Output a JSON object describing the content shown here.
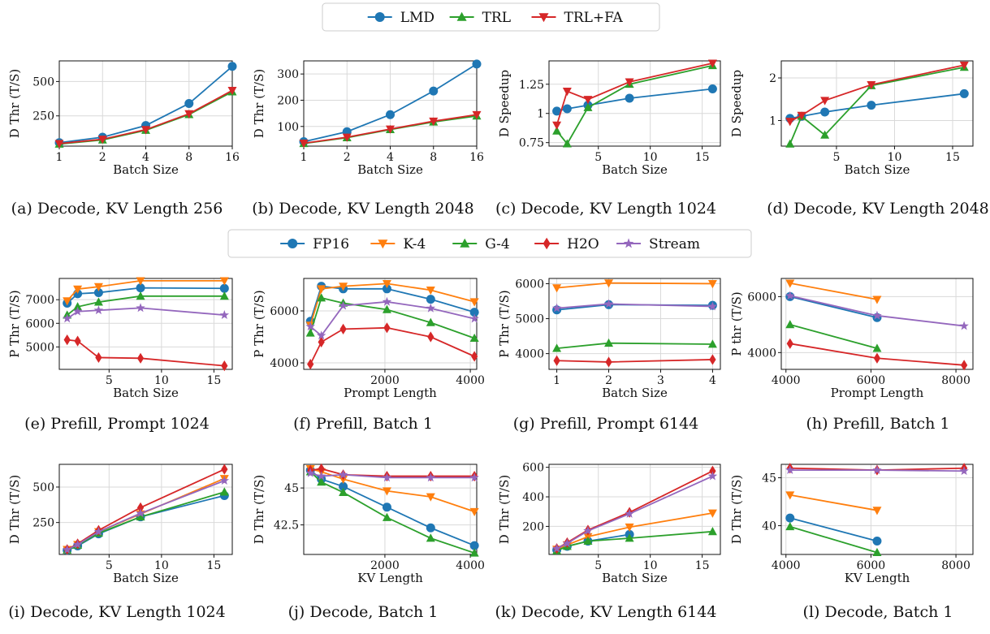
{
  "colors": {
    "LMD": "#1f77b4",
    "TRL": "#2ca02c",
    "TRL+FA": "#d62728",
    "FP16": "#1f77b4",
    "K-4": "#ff7f0e",
    "G-4": "#2ca02c",
    "H2O": "#d62728",
    "Stream": "#9467bd"
  },
  "legends": [
    {
      "entries": [
        {
          "name": "LMD",
          "marker": "circle"
        },
        {
          "name": "TRL",
          "marker": "triangle-up"
        },
        {
          "name": "TRL+FA",
          "marker": "triangle-down"
        }
      ]
    },
    {
      "entries": [
        {
          "name": "FP16",
          "marker": "circle"
        },
        {
          "name": "K-4",
          "marker": "triangle-down"
        },
        {
          "name": "G-4",
          "marker": "triangle-up"
        },
        {
          "name": "H2O",
          "marker": "diamond"
        },
        {
          "name": "Stream",
          "marker": "star"
        }
      ]
    }
  ],
  "chart_data": [
    {
      "id": "a",
      "type": "line",
      "caption": "(a) Decode, KV Length 256",
      "xlabel": "Batch Size",
      "ylabel": "D Thr (T/S)",
      "xscale": "log2",
      "xlim": [
        1,
        16
      ],
      "ylim": [
        30,
        650
      ],
      "xticks": [
        1,
        2,
        4,
        8,
        16
      ],
      "yticks": [
        250,
        500
      ],
      "grid": true,
      "series": [
        {
          "name": "LMD",
          "x": [
            1,
            2,
            4,
            8,
            16
          ],
          "y": [
            55,
            95,
            180,
            340,
            610
          ]
        },
        {
          "name": "TRL",
          "x": [
            1,
            2,
            4,
            8,
            16
          ],
          "y": [
            45,
            75,
            145,
            260,
            425
          ]
        },
        {
          "name": "TRL+FA",
          "x": [
            1,
            2,
            4,
            8,
            16
          ],
          "y": [
            48,
            80,
            150,
            265,
            435
          ]
        }
      ]
    },
    {
      "id": "b",
      "type": "line",
      "caption": "(b) Decode, KV Length 2048",
      "xlabel": "Batch Size",
      "ylabel": "D Thr (T/S)",
      "xscale": "log2",
      "xlim": [
        1,
        16
      ],
      "ylim": [
        25,
        350
      ],
      "xticks": [
        1,
        2,
        4,
        8,
        16
      ],
      "yticks": [
        100,
        200,
        300
      ],
      "grid": true,
      "series": [
        {
          "name": "LMD",
          "x": [
            1,
            2,
            4,
            8,
            16
          ],
          "y": [
            42,
            80,
            145,
            235,
            338
          ]
        },
        {
          "name": "TRL",
          "x": [
            1,
            2,
            4,
            8,
            16
          ],
          "y": [
            35,
            57,
            88,
            117,
            140
          ]
        },
        {
          "name": "TRL+FA",
          "x": [
            1,
            2,
            4,
            8,
            16
          ],
          "y": [
            36,
            59,
            90,
            120,
            145
          ]
        }
      ]
    },
    {
      "id": "c",
      "type": "line",
      "caption": "(c) Decode, KV Length 1024",
      "xlabel": "Batch Size",
      "ylabel": "D Speedup",
      "xscale": "linear",
      "xlim": [
        0.25,
        16.75
      ],
      "ylim": [
        0.72,
        1.45
      ],
      "xticks": [
        5,
        10,
        15
      ],
      "yticks": [
        0.75,
        1.0,
        1.25
      ],
      "grid": true,
      "series": [
        {
          "name": "LMD",
          "x": [
            1,
            2,
            4,
            8,
            16
          ],
          "y": [
            1.02,
            1.04,
            1.07,
            1.13,
            1.21
          ]
        },
        {
          "name": "TRL",
          "x": [
            1,
            2,
            4,
            8,
            16
          ],
          "y": [
            0.85,
            0.74,
            1.05,
            1.25,
            1.41
          ]
        },
        {
          "name": "TRL+FA",
          "x": [
            1,
            2,
            4,
            8,
            16
          ],
          "y": [
            0.9,
            1.19,
            1.12,
            1.27,
            1.43
          ]
        }
      ]
    },
    {
      "id": "d",
      "type": "line",
      "caption": "(d) Decode, KV Length 2048",
      "xlabel": "Batch Size",
      "ylabel": "D Speedup",
      "xscale": "linear",
      "xlim": [
        0.25,
        16.75
      ],
      "ylim": [
        0.4,
        2.4
      ],
      "xticks": [
        5,
        10,
        15
      ],
      "yticks": [
        1,
        2
      ],
      "grid": true,
      "series": [
        {
          "name": "LMD",
          "x": [
            1,
            2,
            4,
            8,
            16
          ],
          "y": [
            1.05,
            1.1,
            1.2,
            1.36,
            1.63
          ]
        },
        {
          "name": "TRL",
          "x": [
            1,
            2,
            4,
            8,
            16
          ],
          "y": [
            0.45,
            1.1,
            0.66,
            1.82,
            2.25
          ]
        },
        {
          "name": "TRL+FA",
          "x": [
            1,
            2,
            4,
            8,
            16
          ],
          "y": [
            0.98,
            1.12,
            1.47,
            1.84,
            2.3
          ]
        }
      ]
    },
    {
      "id": "e",
      "type": "line",
      "caption": "(e) Prefill, Prompt 1024",
      "xlabel": "Batch Size",
      "ylabel": "P Thr (T/S)",
      "xscale": "linear",
      "xlim": [
        0.25,
        16.75
      ],
      "ylim": [
        4050,
        7900
      ],
      "xticks": [
        5,
        10,
        15
      ],
      "yticks": [
        5000,
        6000,
        7000
      ],
      "grid": true,
      "series": [
        {
          "name": "FP16",
          "x": [
            1,
            2,
            4,
            8,
            16
          ],
          "y": [
            6850,
            7250,
            7300,
            7500,
            7480
          ]
        },
        {
          "name": "K-4",
          "x": [
            1,
            2,
            4,
            8,
            16
          ],
          "y": [
            6950,
            7450,
            7550,
            7800,
            7800
          ]
        },
        {
          "name": "G-4",
          "x": [
            1,
            2,
            4,
            8,
            16
          ],
          "y": [
            6350,
            6700,
            6900,
            7150,
            7150
          ]
        },
        {
          "name": "H2O",
          "x": [
            1,
            2,
            4,
            8,
            16
          ],
          "y": [
            5300,
            5250,
            4550,
            4520,
            4200
          ]
        },
        {
          "name": "Stream",
          "x": [
            1,
            2,
            4,
            8,
            16
          ],
          "y": [
            6200,
            6500,
            6550,
            6650,
            6350
          ]
        }
      ]
    },
    {
      "id": "f",
      "type": "line",
      "caption": "(f) Prefill, Batch 1",
      "xlabel": "Prompt Length",
      "ylabel": "P Thr (T/S)",
      "xscale": "linear",
      "xlim": [
        100,
        4150
      ],
      "ylim": [
        3750,
        7250
      ],
      "xticks": [
        2000,
        4000
      ],
      "yticks": [
        4000,
        6000
      ],
      "grid": true,
      "series": [
        {
          "name": "FP16",
          "x": [
            256,
            512,
            1024,
            2048,
            3072,
            4096
          ],
          "y": [
            5600,
            6950,
            6850,
            6850,
            6450,
            5950
          ]
        },
        {
          "name": "K-4",
          "x": [
            256,
            512,
            1024,
            2048,
            3072,
            4096
          ],
          "y": [
            5450,
            6850,
            6950,
            7050,
            6800,
            6350
          ]
        },
        {
          "name": "G-4",
          "x": [
            256,
            512,
            1024,
            2048,
            3072,
            4096
          ],
          "y": [
            5150,
            6500,
            6300,
            6050,
            5550,
            4950
          ]
        },
        {
          "name": "H2O",
          "x": [
            256,
            512,
            1024,
            2048,
            3072,
            4096
          ],
          "y": [
            3950,
            4800,
            5300,
            5350,
            5000,
            4250
          ]
        },
        {
          "name": "Stream",
          "x": [
            256,
            512,
            1024,
            2048,
            3072,
            4096
          ],
          "y": [
            5400,
            5050,
            6200,
            6350,
            6100,
            5700
          ]
        }
      ]
    },
    {
      "id": "g",
      "type": "line",
      "caption": "(g) Prefill, Prompt 6144",
      "xlabel": "Batch Size",
      "ylabel": "P Thr (T/S)",
      "xscale": "linear",
      "xlim": [
        0.85,
        4.15
      ],
      "ylim": [
        3550,
        6150
      ],
      "xticks": [
        1,
        2,
        3,
        4
      ],
      "yticks": [
        4000,
        5000,
        6000
      ],
      "grid": true,
      "series": [
        {
          "name": "FP16",
          "x": [
            1,
            2,
            4
          ],
          "y": [
            5250,
            5400,
            5380
          ]
        },
        {
          "name": "K-4",
          "x": [
            1,
            2,
            4
          ],
          "y": [
            5880,
            6020,
            6000
          ]
        },
        {
          "name": "G-4",
          "x": [
            1,
            2,
            4
          ],
          "y": [
            4150,
            4300,
            4270
          ]
        },
        {
          "name": "H2O",
          "x": [
            1,
            2,
            4
          ],
          "y": [
            3800,
            3760,
            3830
          ]
        },
        {
          "name": "Stream",
          "x": [
            1,
            2,
            4
          ],
          "y": [
            5300,
            5420,
            5350
          ]
        }
      ]
    },
    {
      "id": "h",
      "type": "line",
      "caption": "(h) Prefill, Batch 1",
      "xlabel": "Prompt Length",
      "ylabel": "P thr (T/S)",
      "xscale": "linear",
      "xlim": [
        3890,
        8400
      ],
      "ylim": [
        3400,
        6650
      ],
      "xticks": [
        4000,
        6000,
        8000
      ],
      "yticks": [
        4000,
        6000
      ],
      "grid": true,
      "series": [
        {
          "name": "FP16",
          "x": [
            4096,
            6144
          ],
          "y": [
            6000,
            5250
          ]
        },
        {
          "name": "K-4",
          "x": [
            4096,
            6144
          ],
          "y": [
            6480,
            5900
          ]
        },
        {
          "name": "G-4",
          "x": [
            4096,
            6144
          ],
          "y": [
            5000,
            4150
          ]
        },
        {
          "name": "H2O",
          "x": [
            4096,
            6144,
            8192
          ],
          "y": [
            4320,
            3800,
            3550
          ]
        },
        {
          "name": "Stream",
          "x": [
            4096,
            6144,
            8192
          ],
          "y": [
            6030,
            5320,
            4950
          ]
        }
      ]
    },
    {
      "id": "i",
      "type": "line",
      "caption": "(i) Decode, KV Length 1024",
      "xlabel": "Batch Size",
      "ylabel": "D Thr (T/S)",
      "xscale": "linear",
      "xlim": [
        0.25,
        16.75
      ],
      "ylim": [
        25,
        660
      ],
      "xticks": [
        5,
        10,
        15
      ],
      "yticks": [
        250,
        500
      ],
      "grid": true,
      "series": [
        {
          "name": "FP16",
          "x": [
            1,
            2,
            4,
            8,
            16
          ],
          "y": [
            55,
            85,
            170,
            290,
            440
          ]
        },
        {
          "name": "K-4",
          "x": [
            1,
            2,
            4,
            8,
            16
          ],
          "y": [
            60,
            95,
            185,
            310,
            560
          ]
        },
        {
          "name": "G-4",
          "x": [
            1,
            2,
            4,
            8,
            16
          ],
          "y": [
            55,
            90,
            175,
            290,
            465
          ]
        },
        {
          "name": "H2O",
          "x": [
            1,
            2,
            4,
            8,
            16
          ],
          "y": [
            60,
            100,
            195,
            355,
            625
          ]
        },
        {
          "name": "Stream",
          "x": [
            1,
            2,
            4,
            8,
            16
          ],
          "y": [
            58,
            95,
            185,
            315,
            545
          ]
        }
      ]
    },
    {
      "id": "j",
      "type": "line",
      "caption": "(j) Decode, Batch 1",
      "xlabel": "KV Length",
      "ylabel": "D Thr (T/S)",
      "xscale": "linear",
      "xlim": [
        100,
        4150
      ],
      "ylim": [
        40.5,
        46.6
      ],
      "xticks": [
        2000,
        4000
      ],
      "yticks": [
        42.5,
        45.0
      ],
      "grid": true,
      "series": [
        {
          "name": "FP16",
          "x": [
            256,
            512,
            1024,
            2048,
            3072,
            4096
          ],
          "y": [
            46.2,
            45.6,
            45.1,
            43.7,
            42.3,
            41.1
          ]
        },
        {
          "name": "K-4",
          "x": [
            256,
            512,
            1024,
            2048,
            3072,
            4096
          ],
          "y": [
            46.3,
            46.1,
            45.6,
            44.8,
            44.4,
            43.4
          ]
        },
        {
          "name": "G-4",
          "x": [
            256,
            512,
            1024,
            2048,
            3072,
            4096
          ],
          "y": [
            46.1,
            45.4,
            44.7,
            43.0,
            41.6,
            40.6
          ]
        },
        {
          "name": "H2O",
          "x": [
            256,
            512,
            1024,
            2048,
            3072,
            4096
          ],
          "y": [
            46.2,
            46.3,
            45.9,
            45.8,
            45.8,
            45.8
          ]
        },
        {
          "name": "Stream",
          "x": [
            256,
            512,
            1024,
            2048,
            3072,
            4096
          ],
          "y": [
            46.0,
            45.8,
            45.9,
            45.7,
            45.7,
            45.7
          ]
        }
      ]
    },
    {
      "id": "k",
      "type": "line",
      "caption": "(k) Decode, KV Length 6144",
      "xlabel": "Batch Size",
      "ylabel": "D Thr (T/S)",
      "xscale": "linear",
      "xlim": [
        0.25,
        16.75
      ],
      "ylim": [
        10,
        620
      ],
      "xticks": [
        5,
        10,
        15
      ],
      "yticks": [
        200,
        400,
        600
      ],
      "grid": true,
      "series": [
        {
          "name": "FP16",
          "x": [
            1,
            2,
            4,
            8
          ],
          "y": [
            40,
            65,
            100,
            145
          ]
        },
        {
          "name": "K-4",
          "x": [
            1,
            2,
            4,
            8,
            16
          ],
          "y": [
            45,
            75,
            130,
            195,
            290
          ]
        },
        {
          "name": "G-4",
          "x": [
            1,
            2,
            4,
            8,
            16
          ],
          "y": [
            35,
            65,
            100,
            120,
            165
          ]
        },
        {
          "name": "H2O",
          "x": [
            1,
            2,
            4,
            8,
            16
          ],
          "y": [
            50,
            90,
            175,
            295,
            575
          ]
        },
        {
          "name": "Stream",
          "x": [
            1,
            2,
            4,
            8,
            16
          ],
          "y": [
            50,
            85,
            170,
            285,
            540
          ]
        }
      ]
    },
    {
      "id": "l",
      "type": "line",
      "caption": "(l) Decode, Batch 1",
      "xlabel": "KV Length",
      "ylabel": "D Thr (T/S)",
      "xscale": "linear",
      "xlim": [
        3890,
        8400
      ],
      "ylim": [
        37,
        46.4
      ],
      "xticks": [
        4000,
        6000,
        8000
      ],
      "yticks": [
        40,
        45
      ],
      "grid": true,
      "series": [
        {
          "name": "FP16",
          "x": [
            4096,
            6144
          ],
          "y": [
            40.8,
            38.4
          ]
        },
        {
          "name": "K-4",
          "x": [
            4096,
            6144
          ],
          "y": [
            43.2,
            41.6
          ]
        },
        {
          "name": "G-4",
          "x": [
            4096,
            6144
          ],
          "y": [
            39.9,
            37.2
          ]
        },
        {
          "name": "H2O",
          "x": [
            4096,
            6144,
            8192
          ],
          "y": [
            46.0,
            45.8,
            46.0
          ]
        },
        {
          "name": "Stream",
          "x": [
            4096,
            6144,
            8192
          ],
          "y": [
            45.8,
            45.8,
            45.7
          ]
        }
      ]
    }
  ]
}
